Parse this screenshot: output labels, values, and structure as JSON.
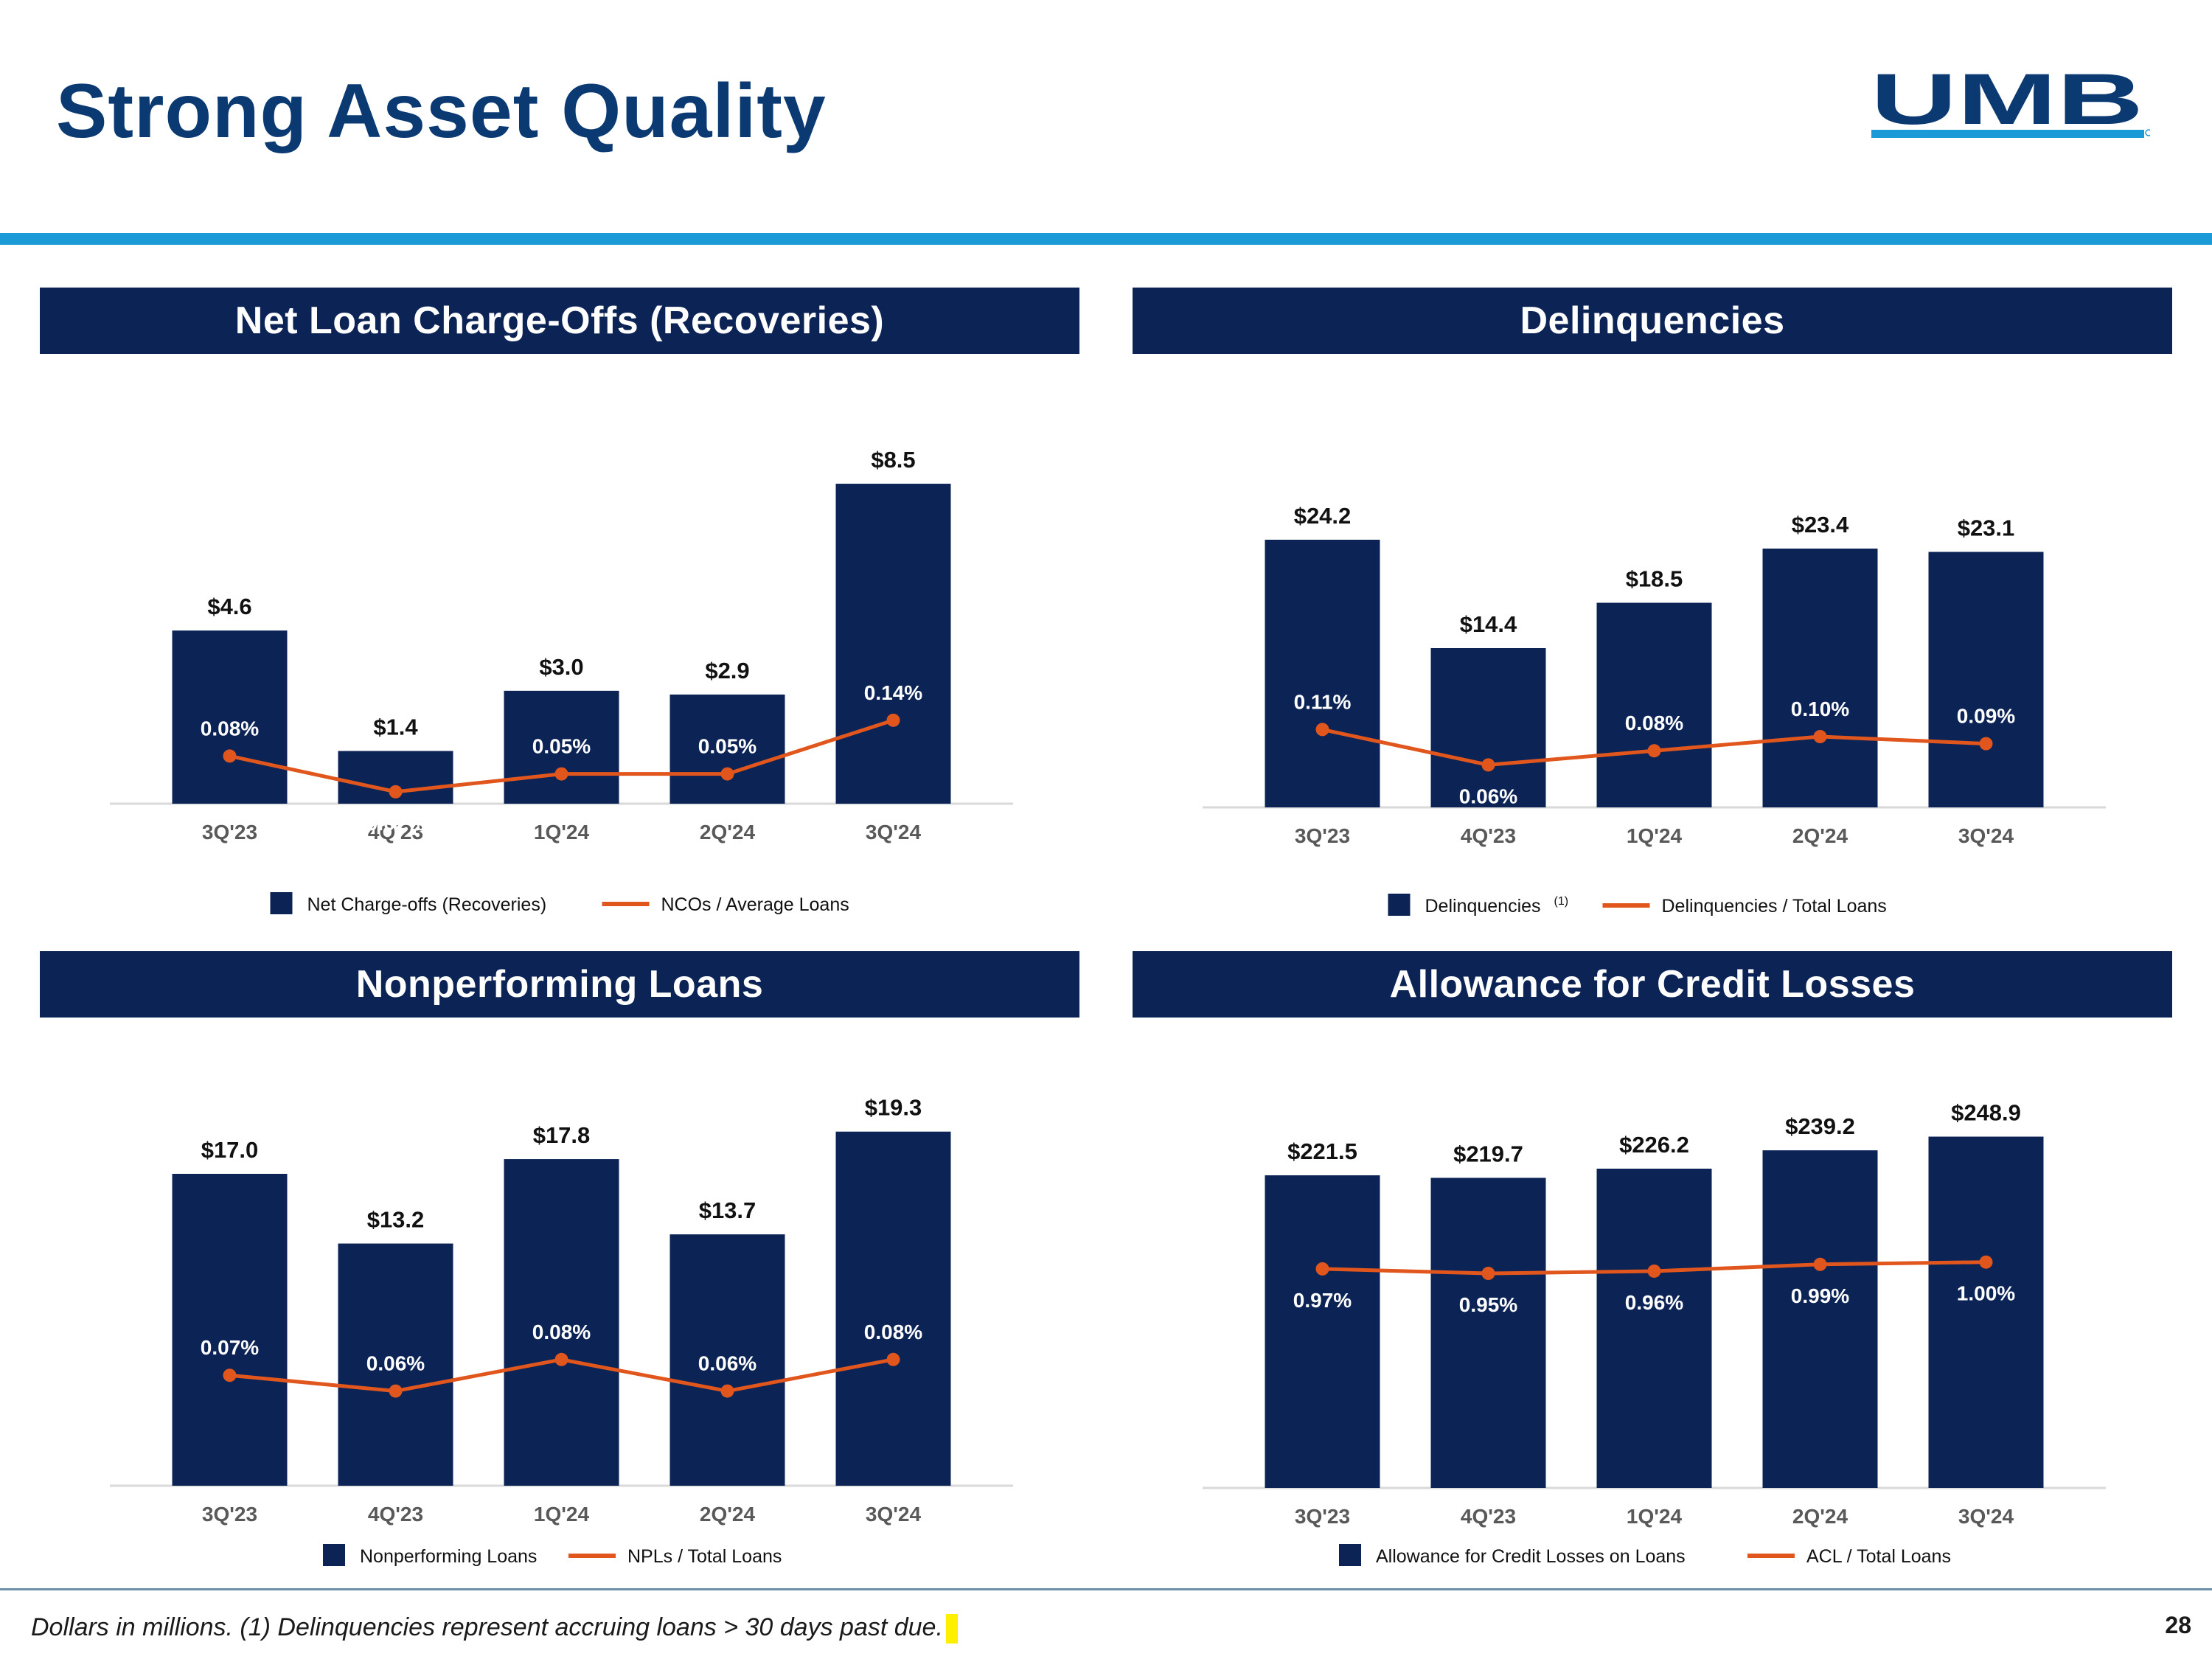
{
  "page": {
    "title": "Strong Asset Quality",
    "logo_text": "UMB",
    "footnote": "Dollars in millions. (1) Delinquencies represent accruing loans > 30 days past due.",
    "page_number": "28"
  },
  "colors": {
    "bar": "#0c2356",
    "line": "#e0561c",
    "title": "#0b3a73",
    "accent": "#1b9ad8"
  },
  "chart_data": [
    {
      "type": "bar",
      "title": "Net Loan Charge-Offs (Recoveries)",
      "categories": [
        "3Q'23",
        "4Q'23",
        "1Q'24",
        "2Q'24",
        "3Q'24"
      ],
      "series": [
        {
          "name": "Net Charge-offs (Recoveries)",
          "kind": "bar",
          "values": [
            4.6,
            1.4,
            3.0,
            2.9,
            8.5
          ],
          "labels": [
            "$4.6",
            "$1.4",
            "$3.0",
            "$2.9",
            "$8.5"
          ]
        },
        {
          "name": "NCOs / Average Loans",
          "kind": "line",
          "values": [
            0.08,
            0.02,
            0.05,
            0.05,
            0.14
          ],
          "labels": [
            "0.08%",
            "0.02%",
            "0.05%",
            "0.05%",
            "0.14%"
          ]
        }
      ],
      "ylim": [
        0,
        9.5
      ],
      "line_ylim": [
        0,
        0.6
      ],
      "legend": [
        {
          "label": "Net Charge-offs (Recoveries)",
          "kind": "bar"
        },
        {
          "label": "NCOs / Average Loans",
          "kind": "line"
        }
      ]
    },
    {
      "type": "bar",
      "title": "Delinquencies",
      "categories": [
        "3Q'23",
        "4Q'23",
        "1Q'24",
        "2Q'24",
        "3Q'24"
      ],
      "series": [
        {
          "name": "Delinquencies (1)",
          "kind": "bar",
          "values": [
            24.2,
            14.4,
            18.5,
            23.4,
            23.1
          ],
          "labels": [
            "$24.2",
            "$14.4",
            "$18.5",
            "$23.4",
            "$23.1"
          ]
        },
        {
          "name": "Delinquencies / Total Loans",
          "kind": "line",
          "values": [
            0.11,
            0.06,
            0.08,
            0.1,
            0.09
          ],
          "labels": [
            "0.11%",
            "0.06%",
            "0.08%",
            "0.10%",
            "0.09%"
          ]
        }
      ],
      "ylim": [
        0,
        32
      ],
      "line_ylim": [
        0,
        0.5
      ],
      "legend": [
        {
          "label": "Delinquencies",
          "sup": "(1)",
          "kind": "bar"
        },
        {
          "label": "Delinquencies / Total Loans",
          "kind": "line"
        }
      ]
    },
    {
      "type": "bar",
      "title": "Nonperforming Loans",
      "categories": [
        "3Q'23",
        "4Q'23",
        "1Q'24",
        "2Q'24",
        "3Q'24"
      ],
      "series": [
        {
          "name": "Nonperforming Loans",
          "kind": "bar",
          "values": [
            17.0,
            13.2,
            17.8,
            13.7,
            19.3
          ],
          "labels": [
            "$17.0",
            "$13.2",
            "$17.8",
            "$13.7",
            "$19.3"
          ]
        },
        {
          "name": "NPLs / Total Loans",
          "kind": "line",
          "values": [
            0.07,
            0.06,
            0.08,
            0.06,
            0.08
          ],
          "labels": [
            "0.07%",
            "0.06%",
            "0.08%",
            "0.06%",
            "0.08%"
          ]
        }
      ],
      "ylim": [
        0,
        21.5
      ],
      "line_ylim": [
        0,
        0.25
      ],
      "legend": [
        {
          "label": "Nonperforming Loans",
          "kind": "bar"
        },
        {
          "label": "NPLs / Total Loans",
          "kind": "line"
        }
      ]
    },
    {
      "type": "bar",
      "title": "Allowance for Credit Losses",
      "categories": [
        "3Q'23",
        "4Q'23",
        "1Q'24",
        "2Q'24",
        "3Q'24"
      ],
      "series": [
        {
          "name": "Allowance for Credit Losses on Loans",
          "kind": "bar",
          "values": [
            221.5,
            219.7,
            226.2,
            239.2,
            248.9
          ],
          "labels": [
            "$221.5",
            "$219.7",
            "$226.2",
            "$239.2",
            "$248.9"
          ]
        },
        {
          "name": "ACL / Total Loans",
          "kind": "line",
          "values": [
            0.97,
            0.95,
            0.96,
            0.99,
            1.0
          ],
          "labels": [
            "0.97%",
            "0.95%",
            "0.96%",
            "0.99%",
            "1.00%"
          ]
        }
      ],
      "ylim": [
        0,
        280
      ],
      "line_ylim": [
        0,
        1.75
      ],
      "legend": [
        {
          "label": "Allowance for Credit Losses on Loans",
          "kind": "bar"
        },
        {
          "label": "ACL / Total Loans",
          "kind": "line"
        }
      ]
    }
  ]
}
